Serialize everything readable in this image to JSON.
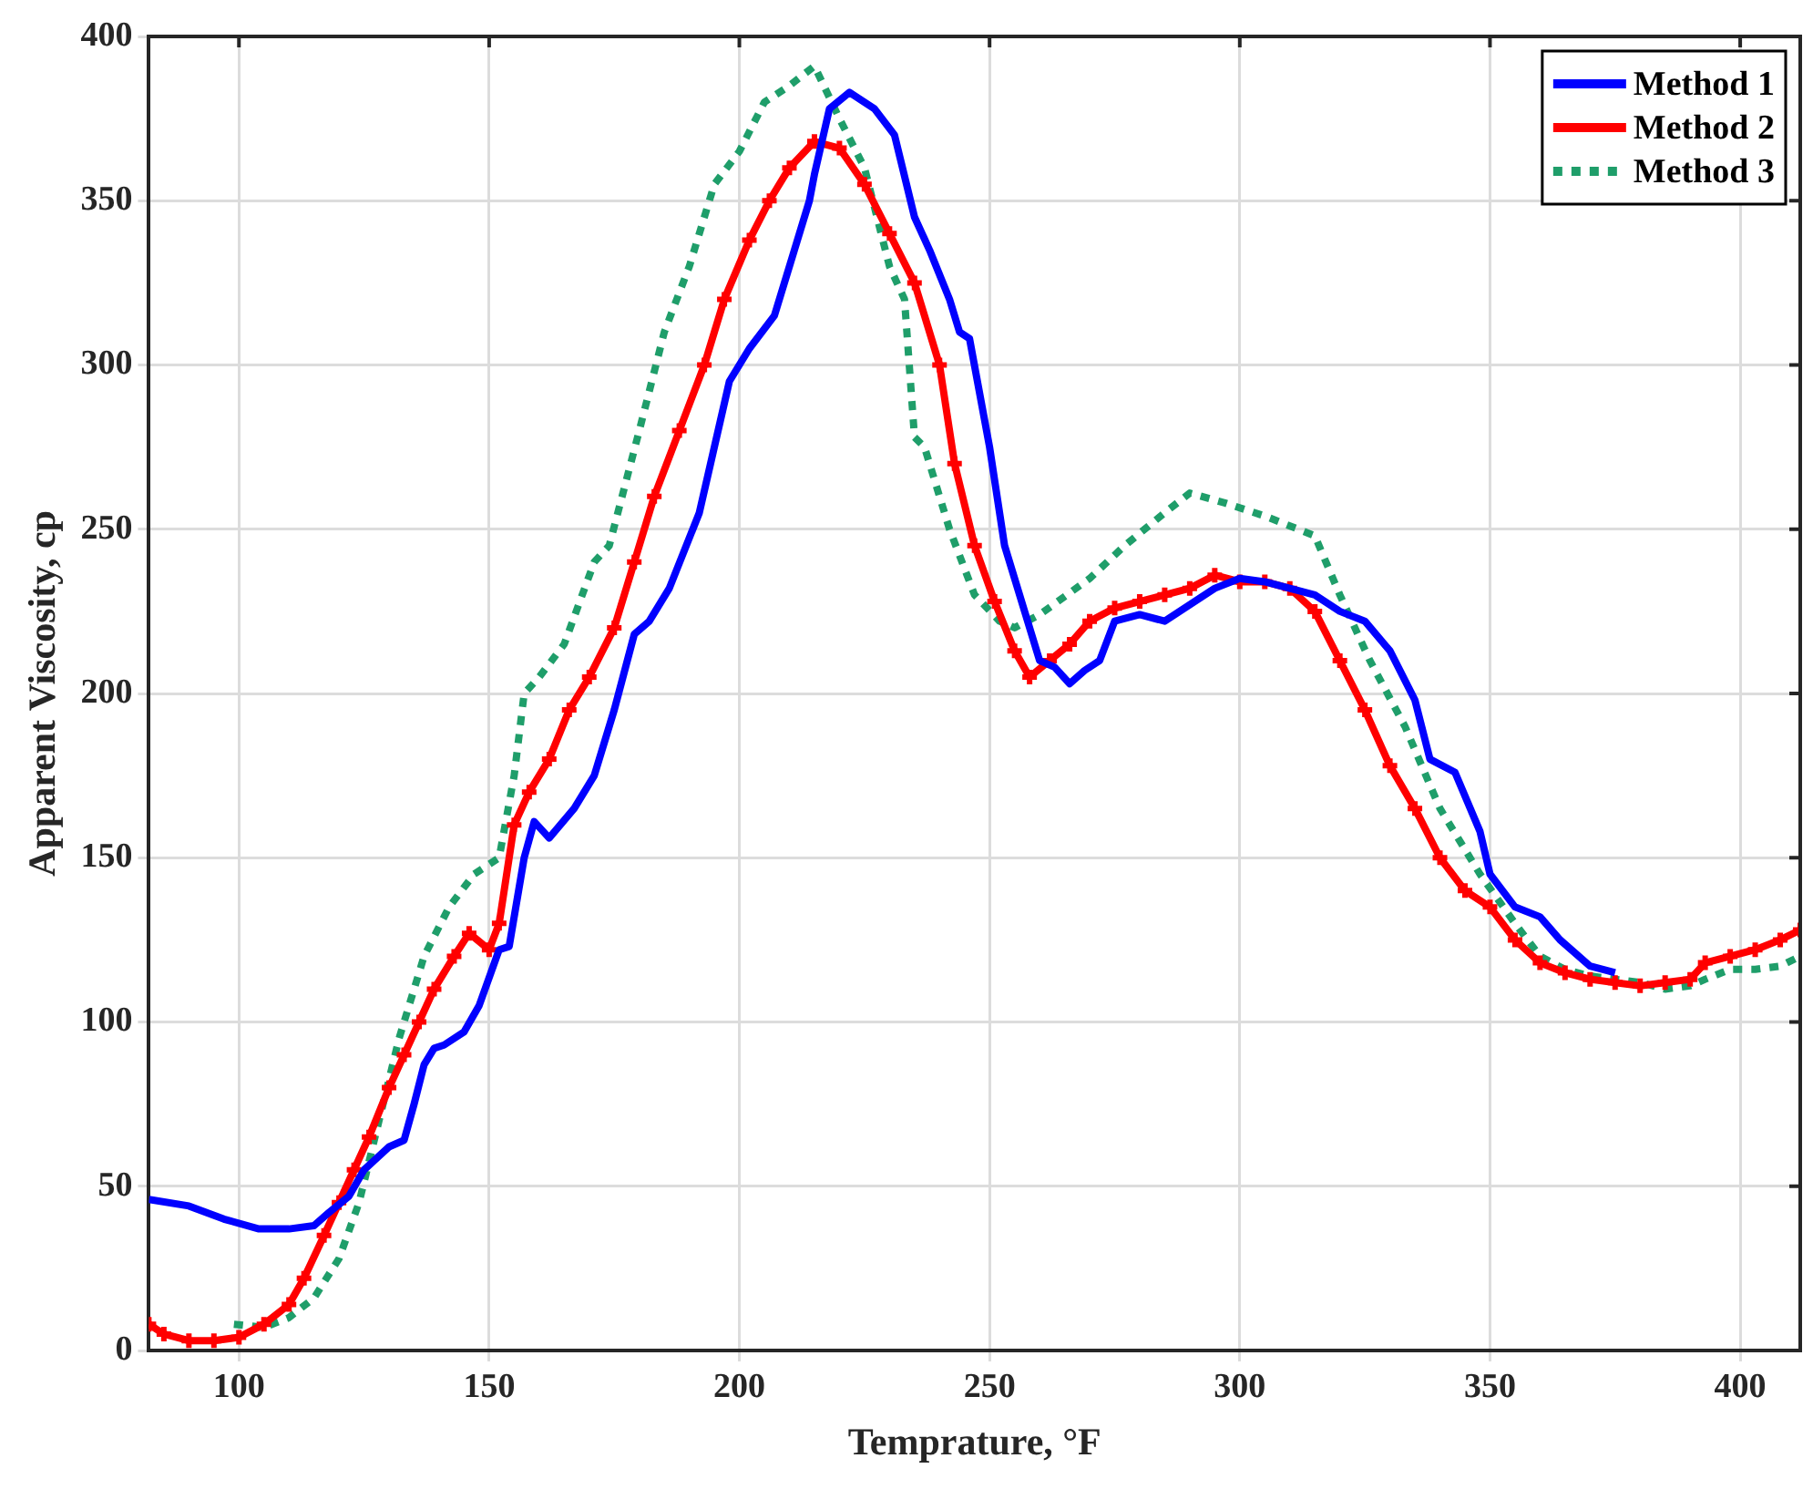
{
  "chart_data": {
    "type": "line",
    "xlabel": "Temprature, °F",
    "ylabel": "Apparent Viscosity, cp",
    "xlim": [
      82,
      412
    ],
    "xticks": [
      100,
      150,
      200,
      250,
      300,
      350,
      400
    ],
    "ylim": [
      0,
      400
    ],
    "yticks": [
      0,
      50,
      100,
      150,
      200,
      250,
      300,
      350,
      400
    ],
    "grid": true,
    "legend": "top right",
    "series": [
      {
        "name": "Method 1",
        "color": "#0000ff",
        "line_style": "solid",
        "marker": "none",
        "x": [
          82,
          90,
          97,
          104,
          110,
          115,
          118,
          122,
          125,
          130,
          133,
          135,
          137,
          139,
          141,
          145,
          148,
          152,
          154,
          157,
          159,
          162,
          167,
          171,
          175,
          179,
          182,
          186,
          192,
          195,
          198,
          202,
          207,
          211,
          214,
          215,
          218,
          222,
          227,
          231,
          235,
          238,
          242,
          244,
          246,
          250,
          253,
          257,
          260,
          263,
          266,
          269,
          272,
          275,
          280,
          285,
          290,
          295,
          300,
          305,
          310,
          315,
          320,
          325,
          330,
          335,
          338,
          343,
          348,
          350,
          355,
          360,
          364,
          370,
          375
        ],
        "values": [
          46,
          44,
          40,
          37,
          37,
          38,
          42,
          47,
          55,
          62,
          64,
          75,
          87,
          92,
          93,
          97,
          105,
          122,
          123,
          150,
          161,
          156,
          165,
          175,
          195,
          218,
          222,
          232,
          255,
          275,
          295,
          305,
          315,
          335,
          350,
          358,
          378,
          383,
          378,
          370,
          345,
          335,
          320,
          310,
          308,
          275,
          245,
          225,
          210,
          208,
          203,
          207,
          210,
          222,
          224,
          222,
          227,
          232,
          235,
          234,
          232,
          230,
          225,
          222,
          213,
          198,
          180,
          176,
          158,
          145,
          135,
          132,
          125,
          117,
          115
        ]
      },
      {
        "name": "Method 2",
        "color": "#ff0000",
        "line_style": "solid",
        "marker": "cross",
        "x": [
          82,
          85,
          90,
          95,
          100,
          105,
          110,
          113,
          117,
          120,
          123,
          126,
          130,
          133,
          136,
          139,
          143,
          146,
          150,
          152,
          155,
          158,
          162,
          166,
          170,
          175,
          179,
          183,
          188,
          193,
          197,
          202,
          206,
          210,
          215,
          220,
          225,
          230,
          235,
          240,
          243,
          247,
          251,
          255,
          258,
          262,
          266,
          270,
          275,
          280,
          285,
          290,
          295,
          300,
          305,
          310,
          315,
          320,
          325,
          330,
          335,
          340,
          345,
          350,
          355,
          360,
          365,
          370,
          375,
          380,
          385,
          390,
          393,
          398,
          403,
          408,
          412
        ],
        "values": [
          8,
          5,
          3,
          3,
          4,
          8,
          14,
          22,
          35,
          45,
          55,
          65,
          80,
          90,
          100,
          110,
          120,
          127,
          122,
          130,
          160,
          170,
          180,
          195,
          205,
          220,
          240,
          260,
          280,
          300,
          320,
          338,
          350,
          360,
          368,
          366,
          355,
          340,
          325,
          300,
          270,
          245,
          228,
          213,
          205,
          210,
          215,
          222,
          226,
          228,
          230,
          232,
          236,
          234,
          234,
          232,
          225,
          210,
          195,
          178,
          165,
          150,
          140,
          135,
          125,
          118,
          115,
          113,
          112,
          111,
          112,
          113,
          118,
          120,
          122,
          125,
          128
        ]
      },
      {
        "name": "Method 3",
        "color": "#1f9e6a",
        "line_style": "dotted",
        "marker": "none",
        "x": [
          99,
          105,
          110,
          115,
          120,
          124,
          128,
          132,
          137,
          142,
          147,
          152,
          155,
          157,
          160,
          165,
          171,
          174,
          180,
          185,
          190,
          195,
          200,
          205,
          210,
          215,
          220,
          225,
          230,
          233,
          235,
          237,
          242,
          247,
          252,
          255,
          260,
          270,
          277,
          285,
          290,
          297,
          305,
          315,
          320,
          326,
          333,
          340,
          348,
          355,
          360,
          365,
          370,
          375,
          380,
          385,
          390,
          393,
          398,
          403,
          408,
          412
        ],
        "values": [
          8,
          7,
          10,
          16,
          28,
          45,
          70,
          95,
          120,
          135,
          145,
          150,
          175,
          200,
          205,
          215,
          240,
          245,
          280,
          310,
          330,
          355,
          365,
          380,
          385,
          391,
          375,
          360,
          330,
          320,
          278,
          275,
          250,
          230,
          222,
          220,
          224,
          235,
          245,
          255,
          261,
          258,
          254,
          248,
          230,
          210,
          190,
          165,
          145,
          130,
          120,
          116,
          114,
          113,
          112,
          110,
          111,
          113,
          116,
          116,
          117,
          120
        ]
      }
    ]
  }
}
